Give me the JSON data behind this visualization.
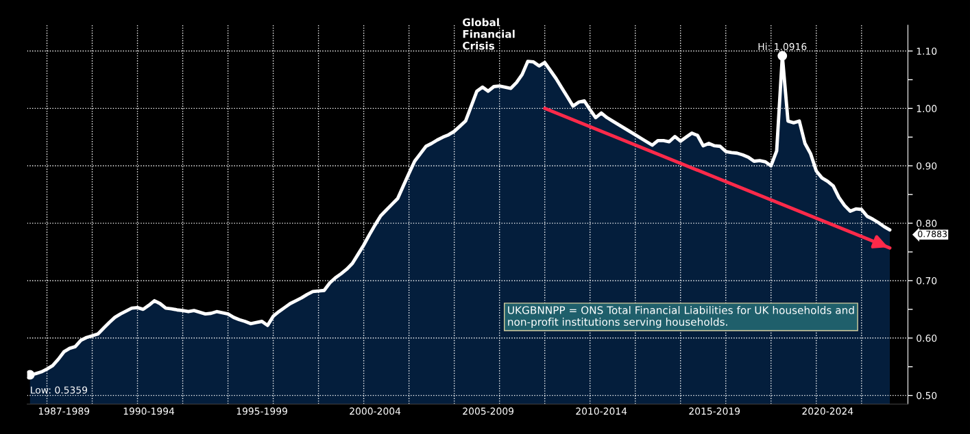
{
  "chart_data": {
    "type": "area",
    "categories": [
      null,
      null,
      null,
      null,
      null,
      null,
      "1987-1989",
      null,
      null,
      null,
      null,
      null,
      null,
      null,
      null,
      null,
      null,
      null,
      null,
      null,
      null,
      "1990-1994",
      null,
      null,
      null,
      null,
      null,
      null,
      null,
      null,
      null,
      null,
      null,
      null,
      null,
      null,
      null,
      null,
      null,
      null,
      null,
      "1995-1999",
      null,
      null,
      null,
      null,
      null,
      null,
      null,
      null,
      null,
      null,
      null,
      null,
      null,
      null,
      null,
      null,
      null,
      null,
      null,
      "2000-2004",
      null,
      null,
      null,
      null,
      null,
      null,
      null,
      null,
      null,
      null,
      null,
      null,
      null,
      null,
      null,
      null,
      null,
      null,
      null,
      "2005-2009",
      null,
      null,
      null,
      null,
      null,
      null,
      null,
      null,
      null,
      null,
      null,
      null,
      null,
      null,
      null,
      null,
      null,
      null,
      null,
      "2010-2014",
      null,
      null,
      null,
      null,
      null,
      null,
      null,
      null,
      null,
      null,
      null,
      null,
      null,
      null,
      null,
      null,
      null,
      null,
      null,
      "2015-2019",
      null,
      null,
      null,
      null,
      null,
      null,
      null,
      null,
      null,
      null,
      null,
      null,
      null,
      null,
      null,
      null,
      null,
      null,
      null,
      "2020-2024",
      null,
      null,
      null,
      null,
      null,
      null,
      null,
      null,
      null,
      null,
      null
    ],
    "series": [
      {
        "type": "area",
        "color": "#041e3c",
        "values": [
          0.5359,
          0.538,
          0.541,
          0.546,
          0.552,
          0.563,
          0.576,
          0.582,
          0.585,
          0.596,
          0.601,
          0.604,
          0.607,
          0.617,
          0.627,
          0.636,
          0.642,
          0.647,
          0.652,
          0.653,
          0.65,
          0.657,
          0.665,
          0.66,
          0.652,
          0.651,
          0.649,
          0.648,
          0.646,
          0.648,
          0.645,
          0.642,
          0.643,
          0.646,
          0.644,
          0.642,
          0.636,
          0.632,
          0.629,
          0.625,
          0.627,
          0.629,
          0.622,
          0.638,
          0.646,
          0.653,
          0.66,
          0.665,
          0.67,
          0.676,
          0.681,
          0.682,
          0.683,
          0.696,
          0.705,
          0.712,
          0.72,
          0.73,
          0.746,
          0.762,
          0.78,
          0.797,
          0.813,
          0.823,
          0.833,
          0.843,
          0.865,
          0.887,
          0.908,
          0.921,
          0.934,
          0.939,
          0.945,
          0.95,
          0.954,
          0.96,
          0.969,
          0.978,
          1.004,
          1.03,
          1.037,
          1.03,
          1.038,
          1.039,
          1.037,
          1.035,
          1.045,
          1.059,
          1.082,
          1.081,
          1.074,
          1.08,
          1.066,
          1.052,
          1.036,
          1.02,
          1.004,
          1.011,
          1.013,
          0.998,
          0.984,
          0.992,
          0.984,
          0.978,
          0.972,
          0.966,
          0.96,
          0.954,
          0.948,
          0.942,
          0.936,
          0.944,
          0.944,
          0.942,
          0.951,
          0.943,
          0.95,
          0.957,
          0.953,
          0.935,
          0.939,
          0.935,
          0.934,
          0.925,
          0.923,
          0.922,
          0.919,
          0.915,
          0.908,
          0.909,
          0.907,
          0.9,
          0.926,
          1.0916,
          0.978,
          0.975,
          0.978,
          0.939,
          0.921,
          0.891,
          0.879,
          0.873,
          0.865,
          0.845,
          0.831,
          0.821,
          0.825,
          0.824,
          0.812,
          0.807,
          0.801,
          0.794,
          0.7883
        ]
      },
      {
        "type": "line",
        "color": "#ff2a4a",
        "values": [
          null,
          null,
          null,
          null,
          null,
          null,
          null,
          null,
          null,
          null,
          null,
          null,
          null,
          null,
          null,
          null,
          null,
          null,
          null,
          null,
          null,
          null,
          null,
          null,
          null,
          null,
          null,
          null,
          null,
          null,
          null,
          null,
          null,
          null,
          null,
          null,
          null,
          null,
          null,
          null,
          null,
          null,
          null,
          null,
          null,
          null,
          null,
          null,
          null,
          null,
          null,
          null,
          null,
          null,
          null,
          null,
          null,
          null,
          null,
          null,
          null,
          null,
          null,
          null,
          null,
          null,
          null,
          null,
          null,
          null,
          null,
          null,
          null,
          null,
          null,
          null,
          null,
          null,
          null,
          null,
          null,
          null,
          null,
          null,
          null,
          null,
          null,
          null,
          null,
          null,
          null,
          1.0,
          null,
          null,
          null,
          null,
          null,
          null,
          null,
          null,
          null,
          null,
          null,
          null,
          null,
          null,
          null,
          null,
          null,
          null,
          null,
          null,
          null,
          null,
          null,
          null,
          null,
          null,
          null,
          null,
          null,
          null,
          null,
          null,
          null,
          null,
          null,
          null,
          null,
          null,
          null,
          null,
          null,
          null,
          null,
          null,
          null,
          null,
          null,
          null,
          null,
          null,
          null,
          null,
          null,
          null,
          null,
          null,
          null,
          null,
          null,
          null,
          0.757
        ]
      }
    ],
    "ylim": [
      0.485,
      1.145
    ],
    "yticks": [
      {
        "value": 0.5,
        "label": "0.50"
      },
      {
        "value": 0.6,
        "label": "0.60"
      },
      {
        "value": 0.7,
        "label": "0.70"
      },
      {
        "value": 0.8,
        "label": "0.80"
      },
      {
        "value": 0.9,
        "label": "0.90"
      },
      {
        "value": 1.0,
        "label": "1.00"
      },
      {
        "value": 1.1,
        "label": "1.10"
      }
    ],
    "annotations": [
      "Global\nFinancial\nCrisis",
      {
        "text": "Hi: 1.0916",
        "y": 1.0916
      },
      "Low: 0.5359",
      "0.7883",
      "UKGBNNPP = ONS Total Financial Liabilities for UK households and\nnon-profit institutions serving households."
    ],
    "grid": true,
    "legend": false,
    "marker": "none"
  }
}
